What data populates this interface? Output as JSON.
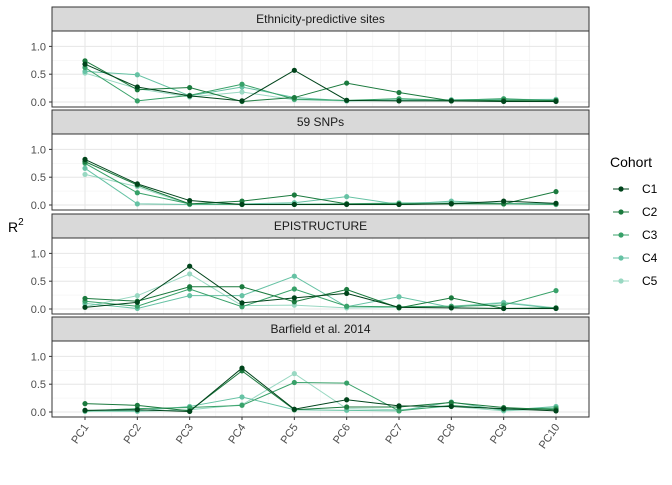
{
  "chart_data": {
    "type": "line",
    "ylabel": "R",
    "ylabel_sup": "2",
    "x": [
      "PC1",
      "PC2",
      "PC3",
      "PC4",
      "PC5",
      "PC6",
      "PC7",
      "PC8",
      "PC9",
      "PC10"
    ],
    "ylim": [
      0,
      1.0
    ],
    "yticks": [
      0.0,
      0.5,
      1.0
    ],
    "yticklabels": [
      "0.0",
      "0.5",
      "1.0"
    ],
    "grid": true,
    "legend": {
      "title": "Cohort",
      "placement": "right",
      "entries": [
        "C1",
        "C2",
        "C3",
        "C4",
        "C5"
      ]
    },
    "colors": {
      "C1": "#00441b",
      "C2": "#1b7a3e",
      "C3": "#38a169",
      "C4": "#66c2a4",
      "C5": "#99d8c2"
    },
    "panels": [
      {
        "title": "Ethnicity-predictive sites",
        "series": [
          {
            "name": "C1",
            "values": [
              0.68,
              0.27,
              0.11,
              0.02,
              0.57,
              0.03,
              0.02,
              0.02,
              0.01,
              0.01
            ]
          },
          {
            "name": "C2",
            "values": [
              0.74,
              0.22,
              0.26,
              0.01,
              0.08,
              0.34,
              0.17,
              0.02,
              0.03,
              0.03
            ]
          },
          {
            "name": "C3",
            "values": [
              0.62,
              0.02,
              0.12,
              0.32,
              0.05,
              0.03,
              0.06,
              0.03,
              0.06,
              0.02
            ]
          },
          {
            "name": "C4",
            "values": [
              0.55,
              0.49,
              0.11,
              0.27,
              0.08,
              0.02,
              0.03,
              0.04,
              0.05,
              0.04
            ]
          },
          {
            "name": "C5",
            "values": [
              0.52,
              0.24,
              0.09,
              0.18,
              0.04,
              0.02,
              0.04,
              0.02,
              0.04,
              0.05
            ]
          }
        ]
      },
      {
        "title": "59 SNPs",
        "series": [
          {
            "name": "C1",
            "values": [
              0.82,
              0.38,
              0.08,
              0.01,
              0.01,
              0.01,
              0.01,
              0.02,
              0.07,
              0.03
            ]
          },
          {
            "name": "C2",
            "values": [
              0.78,
              0.36,
              0.02,
              0.07,
              0.18,
              0.02,
              0.01,
              0.03,
              0.02,
              0.24
            ]
          },
          {
            "name": "C3",
            "values": [
              0.75,
              0.22,
              0.02,
              0.01,
              0.01,
              0.02,
              0.03,
              0.02,
              0.02,
              0.01
            ]
          },
          {
            "name": "C4",
            "values": [
              0.66,
              0.02,
              0.01,
              0.02,
              0.04,
              0.15,
              0.01,
              0.07,
              0.03,
              0.02
            ]
          },
          {
            "name": "C5",
            "values": [
              0.55,
              0.33,
              0.01,
              0.01,
              0.02,
              0.02,
              0.04,
              0.05,
              0.02,
              0.03
            ]
          }
        ]
      },
      {
        "title": "EPISTRUCTURE",
        "series": [
          {
            "name": "C1",
            "values": [
              0.03,
              0.12,
              0.77,
              0.11,
              0.2,
              0.28,
              0.03,
              0.02,
              0.01,
              0.01
            ]
          },
          {
            "name": "C2",
            "values": [
              0.19,
              0.14,
              0.4,
              0.4,
              0.13,
              0.35,
              0.02,
              0.2,
              0.01,
              0.02
            ]
          },
          {
            "name": "C3",
            "values": [
              0.14,
              0.05,
              0.36,
              0.04,
              0.36,
              0.05,
              0.04,
              0.05,
              0.07,
              0.33
            ]
          },
          {
            "name": "C4",
            "values": [
              0.1,
              0.01,
              0.24,
              0.24,
              0.59,
              0.04,
              0.22,
              0.03,
              0.11,
              0.01
            ]
          },
          {
            "name": "C5",
            "values": [
              0.04,
              0.24,
              0.63,
              0.06,
              0.07,
              0.02,
              0.03,
              0.05,
              0.12,
              0.02
            ]
          }
        ]
      },
      {
        "title": "Barfield et al. 2014",
        "series": [
          {
            "name": "C1",
            "values": [
              0.03,
              0.04,
              0.01,
              0.79,
              0.05,
              0.22,
              0.11,
              0.1,
              0.06,
              0.02
            ]
          },
          {
            "name": "C2",
            "values": [
              0.15,
              0.12,
              0.02,
              0.74,
              0.04,
              0.09,
              0.09,
              0.17,
              0.08,
              0.04
            ]
          },
          {
            "name": "C3",
            "values": [
              0.02,
              0.06,
              0.08,
              0.12,
              0.53,
              0.52,
              0.02,
              0.12,
              0.05,
              0.07
            ]
          },
          {
            "name": "C4",
            "values": [
              0.03,
              0.02,
              0.1,
              0.27,
              0.04,
              0.03,
              0.02,
              0.18,
              0.03,
              0.1
            ]
          },
          {
            "name": "C5",
            "values": [
              0.01,
              0.01,
              0.04,
              0.13,
              0.69,
              0.06,
              0.04,
              0.1,
              0.02,
              0.06
            ]
          }
        ]
      }
    ]
  }
}
